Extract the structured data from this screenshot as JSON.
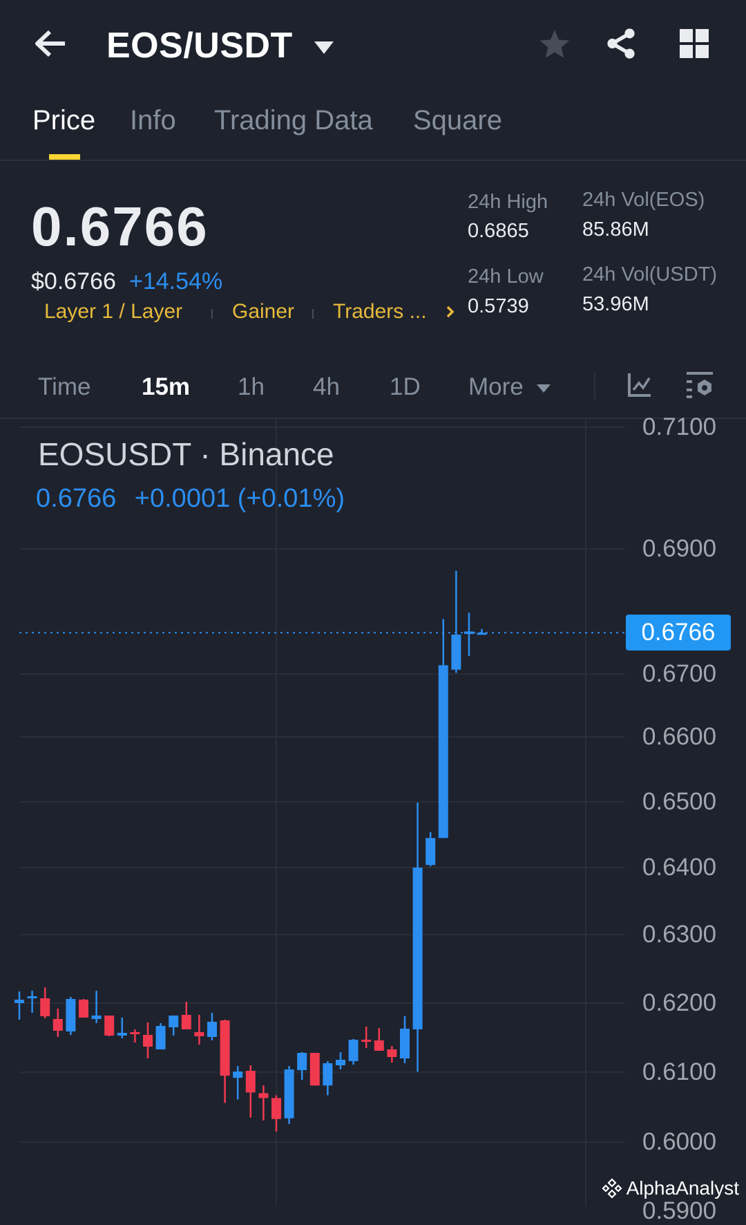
{
  "header": {
    "title": "EOS/USDT",
    "icons": [
      "back-arrow-icon",
      "dropdown-caret-icon",
      "star-icon",
      "share-icon",
      "grid-icon"
    ]
  },
  "tabs": [
    {
      "label": "Price",
      "active": true
    },
    {
      "label": "Info",
      "active": false
    },
    {
      "label": "Trading Data",
      "active": false
    },
    {
      "label": "Square",
      "active": false
    }
  ],
  "ticker": {
    "last_price": "0.6766",
    "usd_price": "$0.6766",
    "change_pct": "+14.54%",
    "tags": [
      "Layer 1 / Layer",
      "Gainer",
      "Traders ..."
    ],
    "stats": {
      "high_label": "24h High",
      "high_value": "0.6865",
      "low_label": "24h Low",
      "low_value": "0.5739",
      "vol_base_label": "24h Vol(EOS)",
      "vol_base_value": "85.86M",
      "vol_quote_label": "24h Vol(USDT)",
      "vol_quote_value": "53.96M"
    }
  },
  "timeframes": {
    "items": [
      {
        "label": "Time",
        "active": false
      },
      {
        "label": "15m",
        "active": true
      },
      {
        "label": "1h",
        "active": false
      },
      {
        "label": "4h",
        "active": false
      },
      {
        "label": "1D",
        "active": false
      },
      {
        "label": "More",
        "active": false
      }
    ],
    "icons": [
      "indicator-icon",
      "chart-settings-icon"
    ]
  },
  "chart_header": {
    "symbol": "EOSUSDT · Binance",
    "price": "0.6766",
    "change": "+0.0001 (+0.01%)"
  },
  "watermark": "AlphaAnalyst",
  "colors": {
    "up": "#2b8ef0",
    "down": "#f0394f",
    "accent": "#fcd535",
    "tag": "#e6b93a",
    "background": "#1e222d"
  },
  "chart_data": {
    "type": "candlestick",
    "interval": "15m",
    "y_ticks": [
      "0.7100",
      "0.6900",
      "0.6700",
      "0.6600",
      "0.6500",
      "0.6400",
      "0.6300",
      "0.6200",
      "0.6100",
      "0.6000",
      "0.5900"
    ],
    "current_price": 0.6766,
    "current_price_label": "0.6766",
    "grid": true,
    "ohlc": [
      [
        0.62,
        0.6217,
        0.6176,
        0.6205
      ],
      [
        0.6208,
        0.6218,
        0.6186,
        0.621
      ],
      [
        0.6207,
        0.6223,
        0.6178,
        0.6181
      ],
      [
        0.6177,
        0.6192,
        0.6151,
        0.616
      ],
      [
        0.6159,
        0.6209,
        0.6154,
        0.6206
      ],
      [
        0.6205,
        0.6206,
        0.6179,
        0.6179
      ],
      [
        0.6177,
        0.6218,
        0.6171,
        0.6182
      ],
      [
        0.6182,
        0.6182,
        0.6152,
        0.6153
      ],
      [
        0.6153,
        0.6179,
        0.6149,
        0.6157
      ],
      [
        0.6158,
        0.6162,
        0.6143,
        0.6155
      ],
      [
        0.6154,
        0.6172,
        0.612,
        0.6137
      ],
      [
        0.6133,
        0.6171,
        0.6133,
        0.6167
      ],
      [
        0.6165,
        0.6182,
        0.6153,
        0.6182
      ],
      [
        0.6183,
        0.6202,
        0.6162,
        0.6162
      ],
      [
        0.6158,
        0.6183,
        0.614,
        0.6152
      ],
      [
        0.6151,
        0.6186,
        0.6146,
        0.6173
      ],
      [
        0.6175,
        0.6176,
        0.6056,
        0.6095
      ],
      [
        0.6092,
        0.6109,
        0.6061,
        0.6101
      ],
      [
        0.6102,
        0.611,
        0.6035,
        0.6071
      ],
      [
        0.607,
        0.6081,
        0.6031,
        0.6063
      ],
      [
        0.6063,
        0.6067,
        0.6015,
        0.6033
      ],
      [
        0.6034,
        0.6109,
        0.6026,
        0.6104
      ],
      [
        0.6103,
        0.6129,
        0.6089,
        0.6128
      ],
      [
        0.6128,
        0.6128,
        0.6081,
        0.6081
      ],
      [
        0.6081,
        0.6116,
        0.6067,
        0.6113
      ],
      [
        0.611,
        0.6129,
        0.6104,
        0.6118
      ],
      [
        0.6116,
        0.6148,
        0.6111,
        0.6147
      ],
      [
        0.6147,
        0.6166,
        0.6135,
        0.6145
      ],
      [
        0.6146,
        0.6164,
        0.6131,
        0.6131
      ],
      [
        0.6133,
        0.6138,
        0.6114,
        0.6122
      ],
      [
        0.612,
        0.6181,
        0.6113,
        0.6163
      ],
      [
        0.6162,
        0.6499,
        0.6101,
        0.64
      ],
      [
        0.6404,
        0.6454,
        0.6402,
        0.6445
      ],
      [
        0.6445,
        0.6788,
        0.6445,
        0.6714
      ],
      [
        0.6707,
        0.6865,
        0.6702,
        0.6763
      ],
      [
        0.6764,
        0.6798,
        0.6729,
        0.6768
      ],
      [
        0.6765,
        0.6772,
        0.6765,
        0.6766
      ]
    ]
  }
}
